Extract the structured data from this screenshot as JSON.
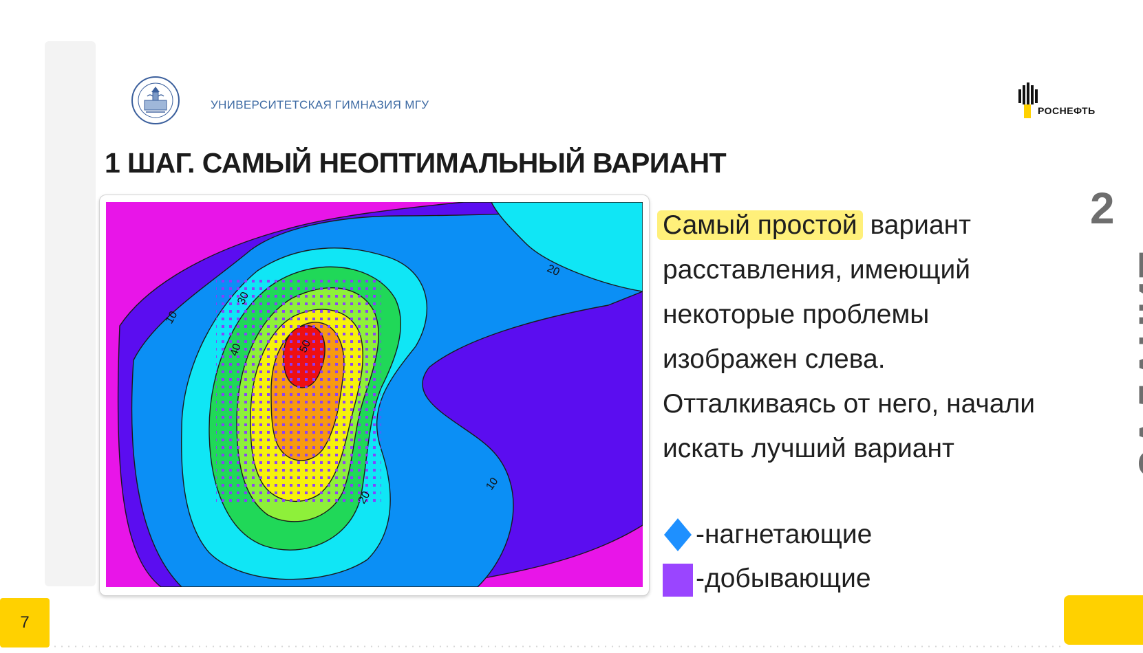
{
  "header": {
    "org_name": "УНИВЕРСИТЕТСКАЯ ГИМНАЗИЯ МГУ",
    "brand_name": "РОСНЕФТЬ",
    "gymnasium_logo_icon": "university-gymnasium-seal-icon",
    "brand_logo_icon": "rosneft-logo-icon"
  },
  "slide": {
    "title": "1 ШАГ. САМЫЙ НЕОПТИМАЛЬНЫЙ ВАРИАНТ",
    "task_label": "ЗАДАНИЕ",
    "task_number": "2",
    "page_number": "7"
  },
  "description": {
    "highlight": "Самый простой",
    "text": "вариант расставления, имеющий некоторые проблемы изображен слева. Отталкиваясь от него, начали искать лучший вариант"
  },
  "legend": [
    {
      "marker": "blue-diamond-icon",
      "color": "#1e90ff",
      "label": "-нагнетающие"
    },
    {
      "marker": "purple-square-icon",
      "color": "#9a45ff",
      "label": "-добывающие"
    }
  ],
  "map": {
    "contour_labels": [
      "10",
      "20",
      "30",
      "40",
      "50",
      "20",
      "20",
      "10"
    ],
    "colors": {
      "magenta": "#e815e8",
      "violet": "#5b0df0",
      "blue": "#0b8ff5",
      "cyan": "#10e6f5",
      "green": "#12e35a",
      "yellow": "#f6f20c",
      "orange": "#f79a10",
      "red": "#ee0f12",
      "dot_purple": "#8a3bff",
      "dot_green": "#18d24a"
    }
  }
}
